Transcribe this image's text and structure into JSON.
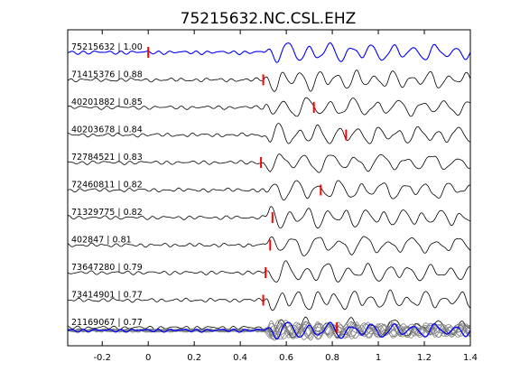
{
  "chart_data": {
    "type": "line",
    "title": "75215632.NC.CSL.EHZ",
    "xlabel": "",
    "ylabel": "",
    "xlim": [
      -0.35,
      1.4
    ],
    "x_ticks": [
      -0.2,
      0,
      0.2,
      0.4,
      0.6,
      0.8,
      1,
      1.2,
      1.4
    ],
    "x_tick_labels": [
      "-0.2",
      "0",
      "0.2",
      "0.4",
      "0.6",
      "0.8",
      "1",
      "1.2",
      "1.4"
    ],
    "grid": false,
    "colors": {
      "reference_trace": "#0000ff",
      "trace": "#000000",
      "stack_trace": "#808080",
      "pick_marker": "#ff0000"
    },
    "traces": [
      {
        "id": "75215632",
        "cc": "1.00",
        "pick": 0.0,
        "reference": true
      },
      {
        "id": "71415376",
        "cc": "0.88",
        "pick": 0.5
      },
      {
        "id": "40201882",
        "cc": "0.85",
        "pick": 0.72
      },
      {
        "id": "40203678",
        "cc": "0.84",
        "pick": 0.86
      },
      {
        "id": "72784521",
        "cc": "0.83",
        "pick": 0.49
      },
      {
        "id": "72460811",
        "cc": "0.82",
        "pick": 0.75
      },
      {
        "id": "71329775",
        "cc": "0.82",
        "pick": 0.54
      },
      {
        "id": "402847",
        "cc": "0.81",
        "pick": 0.53
      },
      {
        "id": "73647280",
        "cc": "0.79",
        "pick": 0.51
      },
      {
        "id": "73414901",
        "cc": "0.77",
        "pick": 0.5
      },
      {
        "id": "21169067",
        "cc": "0.77",
        "pick": 0.82
      }
    ]
  }
}
